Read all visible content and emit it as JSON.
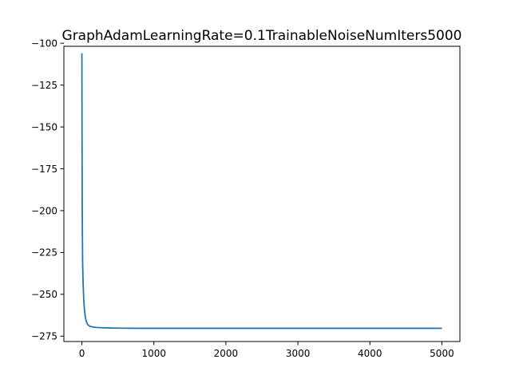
{
  "chart_data": {
    "type": "line",
    "title": "GraphAdamLearningRate=0.1TrainableNoiseNumIters5000",
    "xlabel": "",
    "ylabel": "",
    "xlim": [
      -250,
      5250
    ],
    "ylim": [
      -278.2,
      -101.8
    ],
    "grid": false,
    "legend": "none",
    "x_ticks": [
      0,
      1000,
      2000,
      3000,
      4000,
      5000
    ],
    "x_tick_labels": [
      "0",
      "1000",
      "2000",
      "3000",
      "4000",
      "5000"
    ],
    "y_ticks": [
      -100,
      -125,
      -150,
      -175,
      -200,
      -225,
      -250,
      -275
    ],
    "y_tick_labels": [
      "−100",
      "−125",
      "−150",
      "−175",
      "−200",
      "−225",
      "−250",
      "−275"
    ],
    "series": [
      {
        "color": "#1f77b4",
        "x": [
          0,
          2,
          5,
          10,
          15,
          20,
          25,
          30,
          40,
          50,
          60,
          70,
          80,
          100,
          120,
          150,
          200,
          300,
          500,
          800,
          1000,
          1500,
          2000,
          3000,
          4000,
          5000
        ],
        "y": [
          -106,
          -150,
          -200,
          -230,
          -240,
          -247,
          -252,
          -256,
          -261,
          -264,
          -266,
          -267,
          -268,
          -268.8,
          -269.2,
          -269.5,
          -269.8,
          -270.0,
          -270.2,
          -270.3,
          -270.3,
          -270.3,
          -270.3,
          -270.3,
          -270.3,
          -270.3
        ]
      }
    ]
  }
}
